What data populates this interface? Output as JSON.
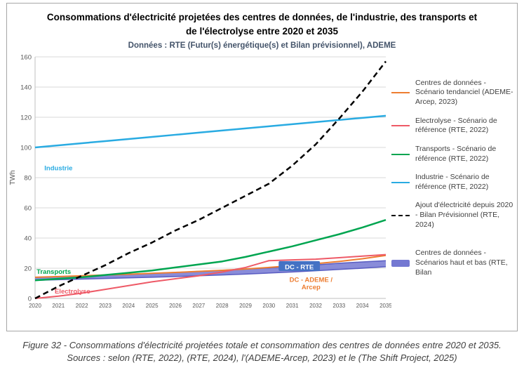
{
  "chart_data": {
    "type": "line",
    "title": "Consommations d'électricité projetées des centres de données, de l'industrie, des transports et de l'électrolyse entre 2020 et 2035",
    "subtitle": "Données :  RTE (Futur(s) énergétique(s) et Bilan prévisionnel), ADEME",
    "xlabel": "",
    "ylabel": "TWh",
    "ylim": [
      0,
      160
    ],
    "ytick_step": 20,
    "grid": "horizontal",
    "legend_position": "right",
    "x": [
      2020,
      2021,
      2022,
      2023,
      2024,
      2025,
      2026,
      2027,
      2028,
      2029,
      2030,
      2031,
      2032,
      2033,
      2034,
      2035
    ],
    "series": [
      {
        "name": "Centres de données - Scénario tendanciel (ADEME-Arcep, 2023)",
        "color": "#ED7D31",
        "style": "solid",
        "width": 2,
        "values": [
          14,
          14.5,
          15,
          15.5,
          16,
          16.6,
          17.2,
          17.9,
          18.6,
          19.5,
          20.5,
          21.7,
          23,
          24.5,
          26.3,
          28.5
        ]
      },
      {
        "name": "Electrolyse - Scénario de référence (RTE, 2022)",
        "color": "#EE5A67",
        "style": "solid",
        "width": 2,
        "values": [
          0,
          1.5,
          3.5,
          6,
          8.5,
          11,
          13,
          15,
          17.5,
          20.5,
          25,
          25.5,
          26,
          27,
          28,
          29
        ]
      },
      {
        "name": "Transports - Scénario de référence (RTE, 2022)",
        "color": "#00A550",
        "style": "solid",
        "width": 2.5,
        "values": [
          12,
          13,
          14,
          15.5,
          17,
          18.5,
          20.5,
          22.5,
          24.5,
          27.5,
          31,
          34.5,
          38.5,
          42.5,
          47,
          52
        ]
      },
      {
        "name": "Industrie - Scénario de référence (RTE, 2022)",
        "color": "#29ABE2",
        "style": "solid",
        "width": 2.5,
        "values": [
          100,
          101.4,
          102.8,
          104.2,
          105.6,
          107,
          108.4,
          109.8,
          111.2,
          112.6,
          114,
          115.4,
          116.8,
          118.2,
          119.6,
          121
        ]
      },
      {
        "name": "Ajout d'électricité depuis 2020 - Bilan Prévisionnel (RTE, 2024)",
        "color": "#000000",
        "style": "dashed",
        "width": 2.5,
        "values": [
          0,
          8,
          15,
          22,
          30,
          37,
          45,
          52,
          60,
          68,
          76,
          88,
          102,
          119,
          137,
          157
        ]
      },
      {
        "name": "Centres de données - Scénarios haut et bas (RTE, Bilan",
        "color": "#7478D2",
        "edge": "#5053BE",
        "style": "band",
        "width": 10,
        "low": [
          12,
          12.4,
          12.8,
          13.2,
          13.6,
          14,
          14.5,
          15,
          15.5,
          16.1,
          16.8,
          17.5,
          18.3,
          19.2,
          20,
          21
        ],
        "high": [
          14,
          14.4,
          14.9,
          15.4,
          16,
          16.6,
          17.2,
          17.9,
          18.6,
          19.4,
          20.2,
          21.2,
          22.2,
          23.3,
          24.2,
          25
        ]
      }
    ],
    "annotations": [
      {
        "text": "Industrie",
        "x": 2021.0,
        "y": 86,
        "color": "#29ABE2"
      },
      {
        "text": "Transports",
        "x": 2020.8,
        "y": 17.5,
        "color": "#00A550"
      },
      {
        "text": "Electrolyse",
        "x": 2021.6,
        "y": 4.5,
        "color": "#EE5A67"
      },
      {
        "text": "DC - RTE",
        "x": 2031.3,
        "y": 20.5,
        "color": "#FFFFFF",
        "bg": "#4472C4"
      },
      {
        "lines": [
          "DC - ADEME /",
          "Arcep"
        ],
        "x": 2031.8,
        "y": 12,
        "color": "#ED7D31"
      }
    ]
  },
  "caption": {
    "line1": "Figure 32 - Consommations d'électricité projetées totale et consommation des centres de données entre 2020 et 2035.",
    "line2": "Sources : selon (RTE, 2022), (RTE, 2024), l'(ADEME-Arcep, 2023)  et le (The Shift Project, 2025)"
  }
}
